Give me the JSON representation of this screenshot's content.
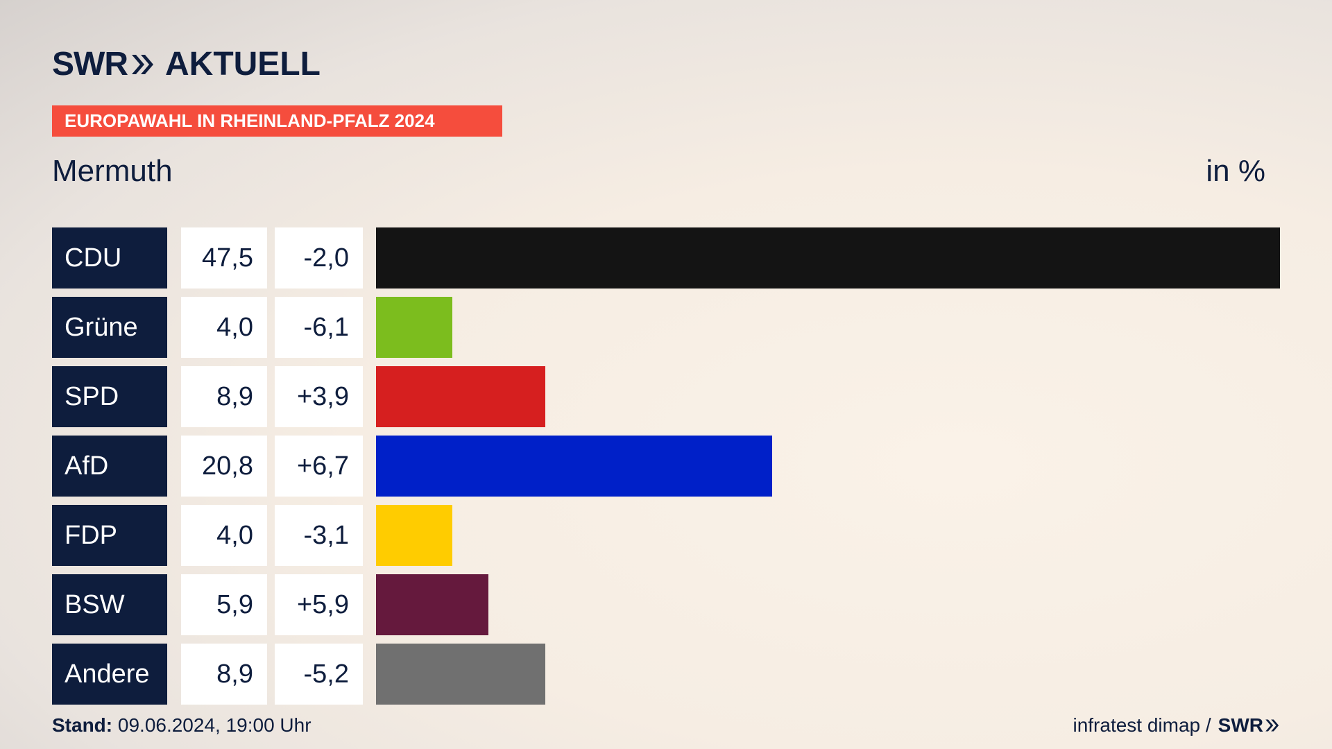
{
  "header": {
    "logo_swr": "SWR",
    "logo_aktuell": "AKTUELL",
    "tag": "EUROPAWAHL IN RHEINLAND-PFALZ 2024",
    "subtitle": "Mermuth",
    "unit": "in %"
  },
  "footer": {
    "stand_label": "Stand:",
    "stand_value": "09.06.2024, 19:00 Uhr",
    "source": "infratest dimap /",
    "source_brand": "SWR"
  },
  "colors": {
    "navy": "#0e1d3d",
    "tag_red": "#f54d3d"
  },
  "chart_data": {
    "type": "bar",
    "orientation": "horizontal",
    "title": "Mermuth",
    "unit": "in %",
    "xlim": [
      0,
      47.5
    ],
    "categories": [
      "CDU",
      "Grüne",
      "SPD",
      "AfD",
      "FDP",
      "BSW",
      "Andere"
    ],
    "series": [
      {
        "values": [
          47.5,
          4.0,
          8.9,
          20.8,
          4.0,
          5.9,
          8.9
        ]
      }
    ],
    "value_labels": [
      "47,5",
      "4,0",
      "8,9",
      "20,8",
      "4,0",
      "5,9",
      "8,9"
    ],
    "diff_labels": [
      "-2,0",
      "-6,1",
      "+3,9",
      "+6,7",
      "-3,1",
      "+5,9",
      "-5,2"
    ],
    "bar_colors": [
      "#141414",
      "#7cbd1e",
      "#d61f1f",
      "#0020c8",
      "#ffcc00",
      "#65193d",
      "#707070"
    ]
  }
}
